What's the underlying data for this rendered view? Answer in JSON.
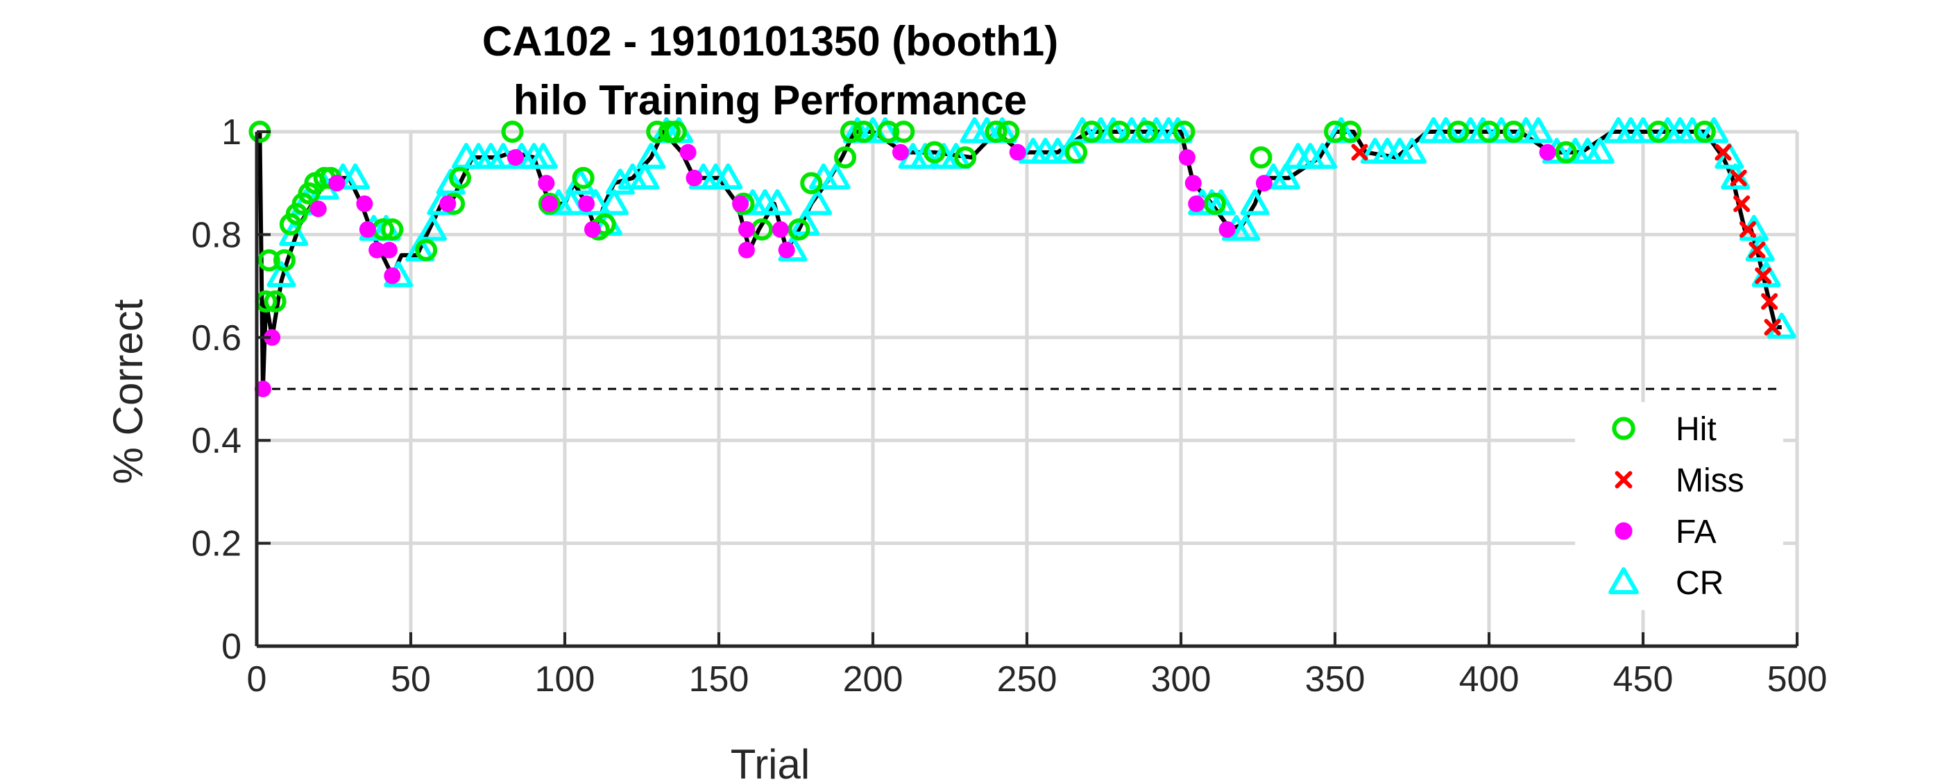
{
  "chart_data": {
    "type": "line",
    "title": "CA102 - 1910101350 (booth1)",
    "subtitle": "hilo Training Performance",
    "xlabel": "Trial",
    "ylabel": "% Correct",
    "xlim": [
      0,
      500
    ],
    "ylim": [
      0,
      1
    ],
    "xticks": [
      0,
      50,
      100,
      150,
      200,
      250,
      300,
      350,
      400,
      450,
      500
    ],
    "yticks": [
      0,
      0.2,
      0.4,
      0.6,
      0.8,
      1
    ],
    "xtick_labels": [
      "0",
      "50",
      "100",
      "150",
      "200",
      "250",
      "300",
      "350",
      "400",
      "450",
      "500"
    ],
    "ytick_labels": [
      "0",
      "0.2",
      "0.4",
      "0.6",
      "0.8",
      "1"
    ],
    "grid": true,
    "legend_position": "lower-right",
    "chance_level": 0.5,
    "colors": {
      "line": "#000000",
      "hit": "#00e600",
      "miss": "#ff0000",
      "fa": "#ff00ff",
      "cr": "#00ffff",
      "grid": "#d9d9d9"
    },
    "legend": [
      {
        "key": "hit",
        "label": "Hit",
        "marker": "circle"
      },
      {
        "key": "miss",
        "label": "Miss",
        "marker": "x"
      },
      {
        "key": "fa",
        "label": "FA",
        "marker": "dot"
      },
      {
        "key": "cr",
        "label": "CR",
        "marker": "triangle"
      }
    ],
    "performance_curve": {
      "x": [
        1,
        2,
        3,
        5,
        8,
        10,
        14,
        18,
        22,
        26,
        30,
        34,
        37,
        40,
        44,
        47,
        52,
        56,
        60,
        63,
        66,
        70,
        78,
        83,
        90,
        95,
        100,
        103,
        107,
        110,
        113,
        116,
        122,
        128,
        132,
        138,
        142,
        150,
        156,
        160,
        163,
        168,
        172,
        176,
        180,
        186,
        190,
        194,
        200,
        210,
        220,
        232,
        240,
        248,
        260,
        270,
        280,
        290,
        300,
        302,
        304,
        310,
        316,
        320,
        324,
        327,
        335,
        345,
        350,
        356,
        360,
        370,
        380,
        390,
        400,
        410,
        420,
        430,
        440,
        450,
        460,
        470,
        476,
        479,
        481,
        483,
        485,
        487,
        489,
        491,
        493,
        495
      ],
      "y": [
        1.0,
        0.5,
        0.67,
        0.6,
        0.71,
        0.75,
        0.82,
        0.86,
        0.9,
        0.91,
        0.91,
        0.86,
        0.81,
        0.77,
        0.72,
        0.76,
        0.76,
        0.81,
        0.86,
        0.86,
        0.9,
        0.95,
        0.95,
        0.96,
        0.95,
        0.86,
        0.86,
        0.9,
        0.86,
        0.81,
        0.86,
        0.9,
        0.91,
        0.95,
        1.0,
        0.96,
        0.91,
        0.91,
        0.86,
        0.77,
        0.81,
        0.86,
        0.77,
        0.81,
        0.86,
        0.91,
        0.95,
        1.0,
        1.0,
        0.96,
        0.96,
        0.95,
        1.0,
        0.96,
        0.96,
        1.0,
        1.0,
        1.0,
        1.0,
        0.95,
        0.9,
        0.86,
        0.81,
        0.82,
        0.86,
        0.91,
        0.91,
        0.95,
        1.0,
        1.0,
        0.96,
        0.95,
        1.0,
        1.0,
        1.0,
        1.0,
        0.96,
        0.96,
        1.0,
        1.0,
        1.0,
        1.0,
        0.95,
        0.91,
        0.86,
        0.81,
        0.81,
        0.77,
        0.72,
        0.67,
        0.62,
        0.62
      ]
    },
    "series": [
      {
        "name": "Hit",
        "points": [
          [
            1,
            1.0
          ],
          [
            3,
            0.67
          ],
          [
            4,
            0.75
          ],
          [
            6,
            0.67
          ],
          [
            9,
            0.75
          ],
          [
            11,
            0.82
          ],
          [
            13,
            0.84
          ],
          [
            15,
            0.86
          ],
          [
            17,
            0.88
          ],
          [
            19,
            0.9
          ],
          [
            22,
            0.91
          ],
          [
            24,
            0.91
          ],
          [
            41,
            0.81
          ],
          [
            44,
            0.81
          ],
          [
            55,
            0.77
          ],
          [
            64,
            0.86
          ],
          [
            66,
            0.91
          ],
          [
            83,
            1.0
          ],
          [
            95,
            0.86
          ],
          [
            106,
            0.91
          ],
          [
            111,
            0.81
          ],
          [
            113,
            0.82
          ],
          [
            130,
            1.0
          ],
          [
            134,
            1.0
          ],
          [
            136,
            1.0
          ],
          [
            158,
            0.86
          ],
          [
            164,
            0.81
          ],
          [
            176,
            0.81
          ],
          [
            180,
            0.9
          ],
          [
            191,
            0.95
          ],
          [
            193,
            1.0
          ],
          [
            197,
            1.0
          ],
          [
            205,
            1.0
          ],
          [
            210,
            1.0
          ],
          [
            220,
            0.96
          ],
          [
            230,
            0.95
          ],
          [
            240,
            1.0
          ],
          [
            244,
            1.0
          ],
          [
            266,
            0.96
          ],
          [
            271,
            1.0
          ],
          [
            280,
            1.0
          ],
          [
            289,
            1.0
          ],
          [
            301,
            1.0
          ],
          [
            311,
            0.86
          ],
          [
            326,
            0.95
          ],
          [
            350,
            1.0
          ],
          [
            355,
            1.0
          ],
          [
            390,
            1.0
          ],
          [
            400,
            1.0
          ],
          [
            408,
            1.0
          ],
          [
            425,
            0.96
          ],
          [
            455,
            1.0
          ],
          [
            470,
            1.0
          ]
        ]
      },
      {
        "name": "Miss",
        "points": [
          [
            358,
            0.96
          ],
          [
            476,
            0.96
          ],
          [
            481,
            0.91
          ],
          [
            482,
            0.86
          ],
          [
            484,
            0.81
          ],
          [
            487,
            0.77
          ],
          [
            489,
            0.72
          ],
          [
            491,
            0.67
          ],
          [
            492,
            0.62
          ]
        ]
      },
      {
        "name": "FA",
        "points": [
          [
            2,
            0.5
          ],
          [
            5,
            0.6
          ],
          [
            20,
            0.85
          ],
          [
            26,
            0.9
          ],
          [
            35,
            0.86
          ],
          [
            36,
            0.81
          ],
          [
            39,
            0.77
          ],
          [
            43,
            0.77
          ],
          [
            44,
            0.72
          ],
          [
            62,
            0.86
          ],
          [
            84,
            0.95
          ],
          [
            94,
            0.9
          ],
          [
            95,
            0.86
          ],
          [
            107,
            0.86
          ],
          [
            109,
            0.81
          ],
          [
            140,
            0.96
          ],
          [
            142,
            0.91
          ],
          [
            157,
            0.86
          ],
          [
            159,
            0.81
          ],
          [
            159,
            0.77
          ],
          [
            170,
            0.81
          ],
          [
            172,
            0.77
          ],
          [
            209,
            0.96
          ],
          [
            247,
            0.96
          ],
          [
            302,
            0.95
          ],
          [
            304,
            0.9
          ],
          [
            305,
            0.86
          ],
          [
            315,
            0.81
          ],
          [
            327,
            0.9
          ],
          [
            419,
            0.96
          ]
        ]
      },
      {
        "name": "CR",
        "points": [
          [
            8,
            0.72
          ],
          [
            12,
            0.8
          ],
          [
            16,
            0.86
          ],
          [
            22,
            0.89
          ],
          [
            28,
            0.91
          ],
          [
            32,
            0.91
          ],
          [
            38,
            0.81
          ],
          [
            42,
            0.81
          ],
          [
            46,
            0.72
          ],
          [
            53,
            0.77
          ],
          [
            57,
            0.81
          ],
          [
            60,
            0.86
          ],
          [
            63,
            0.9
          ],
          [
            68,
            0.95
          ],
          [
            72,
            0.95
          ],
          [
            76,
            0.95
          ],
          [
            80,
            0.95
          ],
          [
            86,
            0.95
          ],
          [
            90,
            0.95
          ],
          [
            93,
            0.95
          ],
          [
            98,
            0.86
          ],
          [
            102,
            0.86
          ],
          [
            105,
            0.9
          ],
          [
            110,
            0.86
          ],
          [
            114,
            0.82
          ],
          [
            116,
            0.86
          ],
          [
            118,
            0.9
          ],
          [
            122,
            0.91
          ],
          [
            126,
            0.91
          ],
          [
            128,
            0.95
          ],
          [
            133,
            1.0
          ],
          [
            137,
            1.0
          ],
          [
            145,
            0.91
          ],
          [
            149,
            0.91
          ],
          [
            153,
            0.91
          ],
          [
            161,
            0.86
          ],
          [
            165,
            0.86
          ],
          [
            169,
            0.86
          ],
          [
            174,
            0.77
          ],
          [
            178,
            0.82
          ],
          [
            182,
            0.86
          ],
          [
            184,
            0.91
          ],
          [
            188,
            0.91
          ],
          [
            195,
            1.0
          ],
          [
            200,
            1.0
          ],
          [
            204,
            1.0
          ],
          [
            213,
            0.95
          ],
          [
            217,
            0.95
          ],
          [
            223,
            0.95
          ],
          [
            227,
            0.95
          ],
          [
            233,
            1.0
          ],
          [
            237,
            1.0
          ],
          [
            242,
            1.0
          ],
          [
            252,
            0.96
          ],
          [
            256,
            0.96
          ],
          [
            260,
            0.96
          ],
          [
            264,
            0.96
          ],
          [
            268,
            1.0
          ],
          [
            274,
            1.0
          ],
          [
            278,
            1.0
          ],
          [
            284,
            1.0
          ],
          [
            288,
            1.0
          ],
          [
            292,
            1.0
          ],
          [
            296,
            1.0
          ],
          [
            299,
            1.0
          ],
          [
            307,
            0.86
          ],
          [
            310,
            0.86
          ],
          [
            313,
            0.86
          ],
          [
            318,
            0.81
          ],
          [
            321,
            0.81
          ],
          [
            324,
            0.86
          ],
          [
            330,
            0.91
          ],
          [
            334,
            0.91
          ],
          [
            338,
            0.95
          ],
          [
            342,
            0.95
          ],
          [
            346,
            0.95
          ],
          [
            352,
            1.0
          ],
          [
            363,
            0.96
          ],
          [
            367,
            0.96
          ],
          [
            371,
            0.96
          ],
          [
            375,
            0.96
          ],
          [
            382,
            1.0
          ],
          [
            386,
            1.0
          ],
          [
            394,
            1.0
          ],
          [
            398,
            1.0
          ],
          [
            404,
            1.0
          ],
          [
            412,
            1.0
          ],
          [
            416,
            1.0
          ],
          [
            422,
            0.96
          ],
          [
            428,
            0.96
          ],
          [
            432,
            0.96
          ],
          [
            436,
            0.96
          ],
          [
            442,
            1.0
          ],
          [
            446,
            1.0
          ],
          [
            450,
            1.0
          ],
          [
            458,
            1.0
          ],
          [
            462,
            1.0
          ],
          [
            466,
            1.0
          ],
          [
            473,
            1.0
          ],
          [
            478,
            0.95
          ],
          [
            480,
            0.91
          ],
          [
            486,
            0.81
          ],
          [
            488,
            0.77
          ],
          [
            490,
            0.72
          ],
          [
            495,
            0.62
          ]
        ]
      }
    ]
  }
}
